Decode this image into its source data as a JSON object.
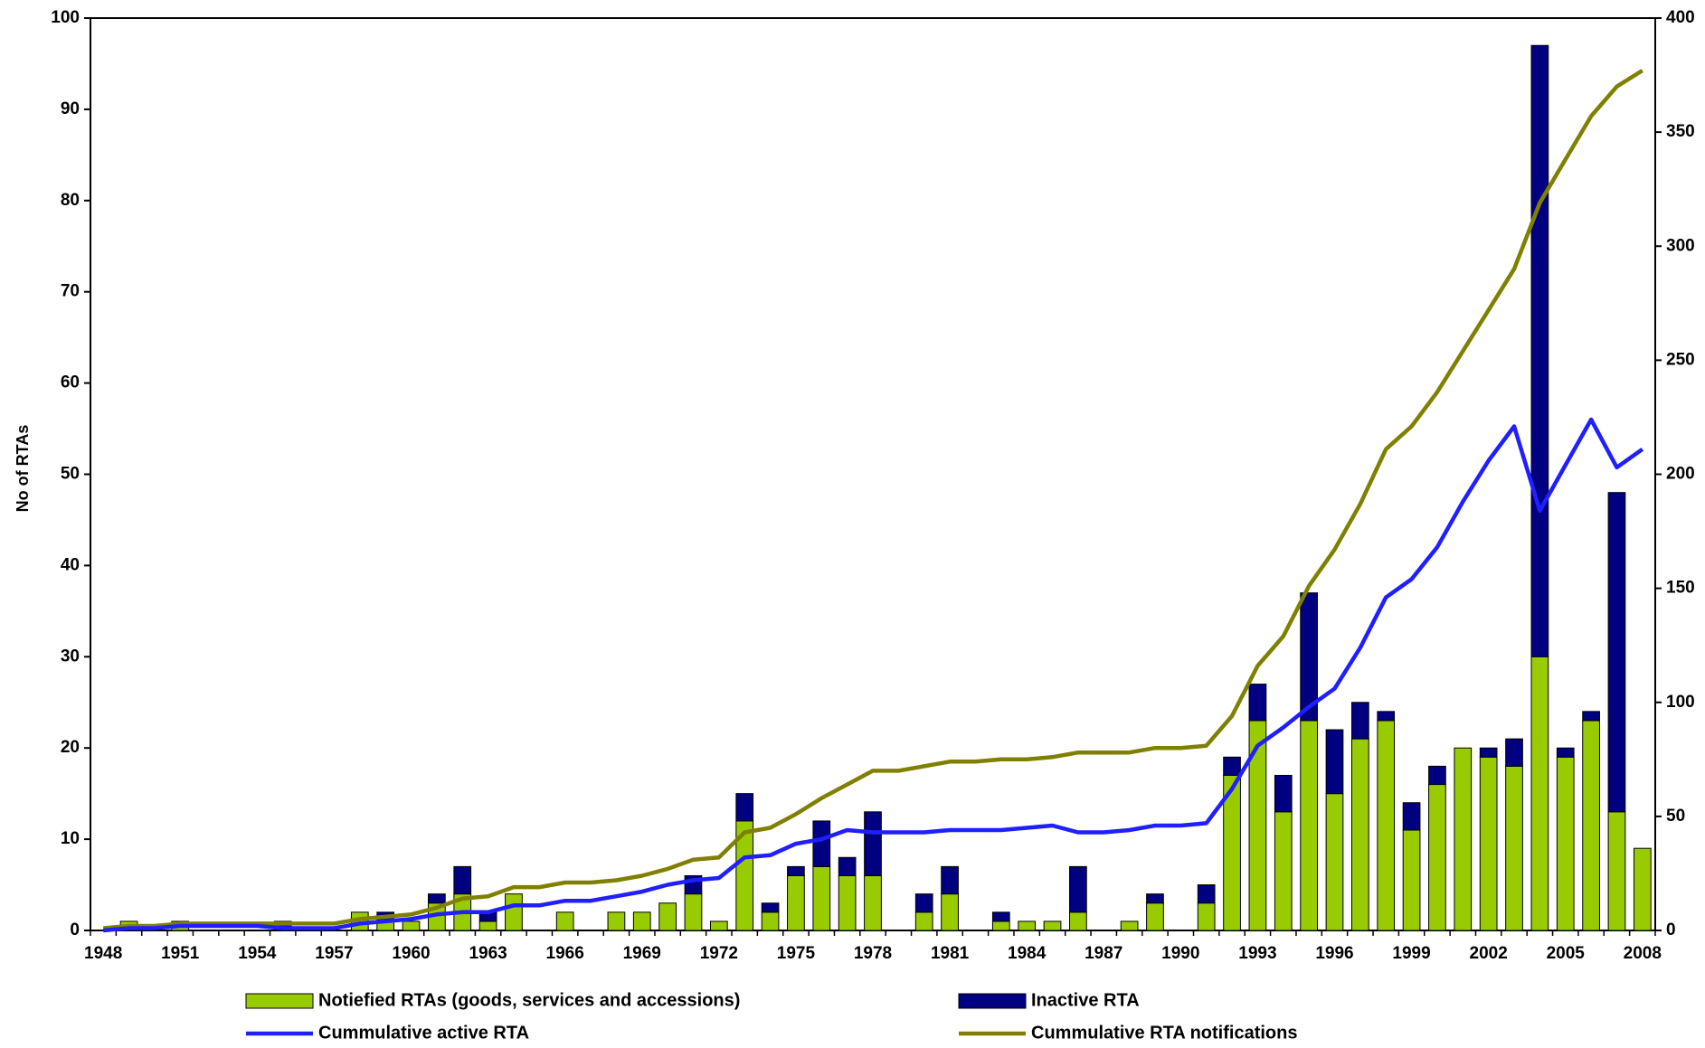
{
  "chart_data": {
    "type": "bar",
    "title": "",
    "xlabel": "",
    "ylabel": "No of RTAs",
    "y2label": "",
    "ylim": [
      0,
      100
    ],
    "y2lim": [
      0,
      400
    ],
    "y_ticks": [
      "0",
      "10",
      "20",
      "30",
      "40",
      "50",
      "60",
      "70",
      "80",
      "90",
      "100"
    ],
    "y2_ticks": [
      "0",
      "50",
      "100",
      "150",
      "200",
      "250",
      "300",
      "350",
      "400"
    ],
    "x_tick_labels": [
      "1948",
      "1951",
      "1954",
      "1957",
      "1960",
      "1963",
      "1966",
      "1969",
      "1972",
      "1975",
      "1978",
      "1981",
      "1984",
      "1987",
      "1990",
      "1993",
      "1996",
      "1999",
      "2002",
      "2005",
      "2008"
    ],
    "grid": false,
    "legend_position": "bottom",
    "colors": {
      "notified": "#99cc00",
      "inactive": "#000080",
      "active_line": "#1f1fff",
      "notifications_line": "#808000"
    },
    "categories": [
      1948,
      1949,
      1950,
      1951,
      1952,
      1953,
      1954,
      1955,
      1956,
      1957,
      1958,
      1959,
      1960,
      1961,
      1962,
      1963,
      1964,
      1965,
      1966,
      1967,
      1968,
      1969,
      1970,
      1971,
      1972,
      1973,
      1974,
      1975,
      1976,
      1977,
      1978,
      1979,
      1980,
      1981,
      1982,
      1983,
      1984,
      1985,
      1986,
      1987,
      1988,
      1989,
      1990,
      1991,
      1992,
      1993,
      1994,
      1995,
      1996,
      1997,
      1998,
      1999,
      2000,
      2001,
      2002,
      2003,
      2004,
      2005,
      2006,
      2007,
      2008
    ],
    "series": [
      {
        "name": "Notiefied RTAs (goods, services and accessions)",
        "kind": "bar-stacked",
        "axis": "left",
        "values": [
          0,
          1,
          0,
          1,
          0,
          0,
          0,
          0,
          0,
          0,
          2,
          1,
          1,
          3,
          4,
          1,
          4,
          0,
          2,
          0,
          2,
          2,
          3,
          4,
          1,
          12,
          2,
          6,
          7,
          6,
          6,
          0,
          2,
          4,
          0,
          1,
          1,
          1,
          2,
          0,
          1,
          3,
          0,
          3,
          17,
          23,
          13,
          23,
          15,
          21,
          23,
          11,
          16,
          20,
          19,
          18,
          30,
          19,
          23,
          13,
          9
        ]
      },
      {
        "name": "Inactive RTA",
        "kind": "bar-stacked",
        "axis": "left",
        "values": [
          0,
          0,
          0,
          0,
          0,
          0,
          0,
          1,
          0,
          0,
          0,
          1,
          0,
          1,
          3,
          1,
          0,
          0,
          0,
          0,
          0,
          0,
          0,
          2,
          0,
          3,
          1,
          1,
          5,
          2,
          7,
          0,
          2,
          3,
          0,
          1,
          0,
          0,
          5,
          0,
          0,
          1,
          0,
          2,
          2,
          4,
          4,
          14,
          7,
          4,
          1,
          3,
          2,
          0,
          1,
          3,
          67,
          1,
          1,
          35,
          0
        ]
      },
      {
        "name": "Cummulative active RTA",
        "kind": "line",
        "axis": "right",
        "values": [
          0,
          1,
          1,
          2,
          2,
          2,
          2,
          1,
          1,
          1,
          3,
          4,
          5,
          7,
          8,
          8,
          11,
          11,
          13,
          13,
          15,
          17,
          20,
          22,
          23,
          32,
          33,
          38,
          40,
          44,
          43,
          43,
          43,
          44,
          44,
          44,
          45,
          46,
          43,
          43,
          44,
          46,
          46,
          47,
          62,
          81,
          89,
          98,
          106,
          124,
          146,
          154,
          168,
          188,
          206,
          221,
          184,
          204,
          224,
          203,
          211
        ]
      },
      {
        "name": "Cummulative RTA notifications",
        "kind": "line",
        "axis": "right",
        "values": [
          1,
          2,
          2,
          3,
          3,
          3,
          3,
          3,
          3,
          3,
          5,
          6,
          7,
          10,
          14,
          15,
          19,
          19,
          21,
          21,
          22,
          24,
          27,
          31,
          32,
          43,
          45,
          51,
          58,
          64,
          70,
          70,
          72,
          74,
          74,
          75,
          75,
          76,
          78,
          78,
          78,
          80,
          80,
          81,
          94,
          116,
          129,
          151,
          167,
          187,
          211,
          221,
          236,
          254,
          272,
          290,
          319,
          338,
          357,
          370,
          377
        ]
      }
    ]
  }
}
